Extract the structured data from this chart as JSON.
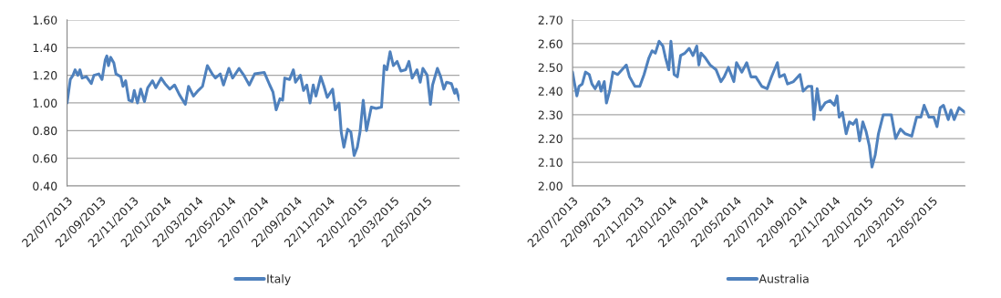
{
  "chart_data": [
    {
      "type": "line",
      "grid": "y",
      "legend": "bottom",
      "marker": "none",
      "line_style": "solid",
      "ylim": [
        0.4,
        1.6
      ],
      "yticks": [
        {
          "value": 0.4,
          "label": "0.40"
        },
        {
          "value": 0.6,
          "label": "0.60"
        },
        {
          "value": 0.8,
          "label": "0.80"
        },
        {
          "value": 1.0,
          "label": "1.00"
        },
        {
          "value": 1.2,
          "label": "1.20"
        },
        {
          "value": 1.4,
          "label": "1.40"
        },
        {
          "value": 1.6,
          "label": "1.60"
        }
      ],
      "xlim": [
        "2013-07-22",
        "2015-07-22"
      ],
      "xticks": [
        {
          "value": "2013-07-22",
          "label": "22/07/2013"
        },
        {
          "value": "2013-09-22",
          "label": "22/09/2013"
        },
        {
          "value": "2013-11-22",
          "label": "22/11/2013"
        },
        {
          "value": "2014-01-22",
          "label": "22/01/2014"
        },
        {
          "value": "2014-03-22",
          "label": "22/03/2014"
        },
        {
          "value": "2014-05-22",
          "label": "22/05/2014"
        },
        {
          "value": "2014-07-22",
          "label": "22/07/2014"
        },
        {
          "value": "2014-09-22",
          "label": "22/09/2014"
        },
        {
          "value": "2014-11-22",
          "label": "22/11/2014"
        },
        {
          "value": "2015-01-22",
          "label": "22/01/2015"
        },
        {
          "value": "2015-03-22",
          "label": "22/03/2015"
        },
        {
          "value": "2015-05-22",
          "label": "22/05/2015"
        }
      ],
      "x": [
        "2013-07-22",
        "2013-07-28",
        "2013-08-02",
        "2013-08-06",
        "2013-08-11",
        "2013-08-15",
        "2013-08-19",
        "2013-08-27",
        "2013-09-05",
        "2013-09-10",
        "2013-09-19",
        "2013-09-25",
        "2013-10-01",
        "2013-10-04",
        "2013-10-07",
        "2013-10-11",
        "2013-10-17",
        "2013-10-21",
        "2013-10-30",
        "2013-11-03",
        "2013-11-08",
        "2013-11-14",
        "2013-11-20",
        "2013-11-24",
        "2013-11-30",
        "2013-12-06",
        "2013-12-13",
        "2013-12-19",
        "2013-12-28",
        "2014-01-03",
        "2014-01-13",
        "2014-01-20",
        "2014-01-29",
        "2014-02-07",
        "2014-02-16",
        "2014-02-27",
        "2014-03-05",
        "2014-03-14",
        "2014-03-23",
        "2014-03-31",
        "2014-04-09",
        "2014-04-18",
        "2014-04-24",
        "2014-05-03",
        "2014-05-09",
        "2014-05-19",
        "2014-05-26",
        "2014-06-07",
        "2014-06-16",
        "2014-06-26",
        "2014-07-06",
        "2014-07-24",
        "2014-08-03",
        "2014-08-09",
        "2014-08-15",
        "2014-08-22",
        "2014-08-27",
        "2014-08-31",
        "2014-09-09",
        "2014-09-16",
        "2014-09-20",
        "2014-09-29",
        "2014-10-05",
        "2014-10-11",
        "2014-10-17",
        "2014-10-23",
        "2014-10-28",
        "2014-11-06",
        "2014-11-12",
        "2014-11-18",
        "2014-11-28",
        "2014-12-03",
        "2014-12-10",
        "2014-12-14",
        "2014-12-19",
        "2014-12-26",
        "2015-01-01",
        "2015-01-07",
        "2015-01-13",
        "2015-01-18",
        "2015-01-24",
        "2015-01-30",
        "2015-02-08",
        "2015-02-17",
        "2015-02-27",
        "2015-03-04",
        "2015-03-09",
        "2015-03-15",
        "2015-03-21",
        "2015-03-28",
        "2015-04-04",
        "2015-04-13",
        "2015-04-19",
        "2015-04-25",
        "2015-05-04",
        "2015-05-10",
        "2015-05-15",
        "2015-05-23",
        "2015-05-29",
        "2015-06-02",
        "2015-06-11",
        "2015-06-17",
        "2015-06-23",
        "2015-06-28",
        "2015-07-07",
        "2015-07-13",
        "2015-07-16",
        "2015-07-22"
      ],
      "series": [
        {
          "name": "Italy",
          "color": "#4f81bd",
          "values": [
            1.0,
            1.17,
            1.2,
            1.24,
            1.2,
            1.24,
            1.18,
            1.19,
            1.14,
            1.2,
            1.21,
            1.17,
            1.31,
            1.34,
            1.27,
            1.33,
            1.29,
            1.21,
            1.19,
            1.12,
            1.16,
            1.02,
            1.01,
            1.09,
            1.0,
            1.1,
            1.01,
            1.11,
            1.16,
            1.11,
            1.18,
            1.14,
            1.1,
            1.13,
            1.06,
            0.99,
            1.12,
            1.05,
            1.09,
            1.12,
            1.27,
            1.21,
            1.18,
            1.21,
            1.13,
            1.25,
            1.18,
            1.25,
            1.2,
            1.13,
            1.21,
            1.22,
            1.13,
            1.08,
            0.95,
            1.03,
            1.02,
            1.18,
            1.17,
            1.24,
            1.15,
            1.2,
            1.09,
            1.13,
            1.0,
            1.13,
            1.05,
            1.19,
            1.12,
            1.04,
            1.1,
            0.95,
            1.0,
            0.79,
            0.68,
            0.81,
            0.79,
            0.62,
            0.68,
            0.79,
            1.02,
            0.8,
            0.97,
            0.96,
            0.97,
            1.27,
            1.24,
            1.37,
            1.27,
            1.3,
            1.23,
            1.24,
            1.3,
            1.18,
            1.24,
            1.15,
            1.25,
            1.2,
            0.99,
            1.13,
            1.25,
            1.19,
            1.1,
            1.15,
            1.14,
            1.07,
            1.1,
            1.02
          ]
        }
      ]
    },
    {
      "type": "line",
      "grid": "y",
      "legend": "bottom",
      "marker": "none",
      "line_style": "solid",
      "ylim": [
        2.0,
        2.7
      ],
      "yticks": [
        {
          "value": 2.0,
          "label": "2.00"
        },
        {
          "value": 2.1,
          "label": "2.10"
        },
        {
          "value": 2.2,
          "label": "2.20"
        },
        {
          "value": 2.3,
          "label": "2.30"
        },
        {
          "value": 2.4,
          "label": "2.40"
        },
        {
          "value": 2.5,
          "label": "2.50"
        },
        {
          "value": 2.6,
          "label": "2.60"
        },
        {
          "value": 2.7,
          "label": "2.70"
        }
      ],
      "xlim": [
        "2013-07-22",
        "2015-07-22"
      ],
      "xticks": [
        {
          "value": "2013-07-22",
          "label": "22/07/2013"
        },
        {
          "value": "2013-09-22",
          "label": "22/09/2013"
        },
        {
          "value": "2013-11-22",
          "label": "22/11/2013"
        },
        {
          "value": "2014-01-22",
          "label": "22/01/2014"
        },
        {
          "value": "2014-03-22",
          "label": "22/03/2014"
        },
        {
          "value": "2014-05-22",
          "label": "22/05/2014"
        },
        {
          "value": "2014-07-22",
          "label": "22/07/2014"
        },
        {
          "value": "2014-09-22",
          "label": "22/09/2014"
        },
        {
          "value": "2014-11-22",
          "label": "22/11/2014"
        },
        {
          "value": "2015-01-22",
          "label": "22/01/2015"
        },
        {
          "value": "2015-03-22",
          "label": "22/03/2015"
        },
        {
          "value": "2015-05-22",
          "label": "22/05/2015"
        }
      ],
      "x": [
        "2013-07-22",
        "2013-07-25",
        "2013-07-30",
        "2013-08-03",
        "2013-08-09",
        "2013-08-15",
        "2013-08-22",
        "2013-08-27",
        "2013-09-02",
        "2013-09-09",
        "2013-09-13",
        "2013-09-19",
        "2013-09-23",
        "2013-09-29",
        "2013-10-05",
        "2013-10-14",
        "2013-10-22",
        "2013-10-30",
        "2013-11-05",
        "2013-11-15",
        "2013-11-24",
        "2013-12-02",
        "2013-12-11",
        "2013-12-17",
        "2013-12-23",
        "2013-12-30",
        "2014-01-06",
        "2014-01-11",
        "2014-01-17",
        "2014-01-21",
        "2014-01-27",
        "2014-02-02",
        "2014-02-08",
        "2014-02-16",
        "2014-02-24",
        "2014-03-03",
        "2014-03-10",
        "2014-03-14",
        "2014-03-18",
        "2014-03-26",
        "2014-04-04",
        "2014-04-15",
        "2014-04-24",
        "2014-04-30",
        "2014-05-08",
        "2014-05-18",
        "2014-05-23",
        "2014-06-02",
        "2014-06-11",
        "2014-06-19",
        "2014-06-28",
        "2014-07-09",
        "2014-07-19",
        "2014-07-27",
        "2014-08-07",
        "2014-08-11",
        "2014-08-20",
        "2014-08-26",
        "2014-09-06",
        "2014-09-18",
        "2014-09-24",
        "2014-10-03",
        "2014-10-10",
        "2014-10-14",
        "2014-10-20",
        "2014-10-26",
        "2014-11-04",
        "2014-11-13",
        "2014-11-21",
        "2014-11-26",
        "2014-11-30",
        "2014-12-06",
        "2014-12-13",
        "2014-12-19",
        "2014-12-26",
        "2015-01-01",
        "2015-01-07",
        "2015-01-13",
        "2015-01-19",
        "2015-01-25",
        "2015-01-30",
        "2015-02-05",
        "2015-02-11",
        "2015-02-20",
        "2015-03-01",
        "2015-03-07",
        "2015-03-15",
        "2015-03-24",
        "2015-04-02",
        "2015-04-14",
        "2015-04-23",
        "2015-05-01",
        "2015-05-07",
        "2015-05-16",
        "2015-05-25",
        "2015-05-31",
        "2015-06-06",
        "2015-06-12",
        "2015-06-21",
        "2015-06-26",
        "2015-07-02",
        "2015-07-11",
        "2015-07-22"
      ],
      "series": [
        {
          "name": "Australia",
          "color": "#4f81bd",
          "values": [
            2.48,
            2.44,
            2.38,
            2.42,
            2.43,
            2.48,
            2.47,
            2.43,
            2.41,
            2.44,
            2.4,
            2.44,
            2.35,
            2.4,
            2.48,
            2.47,
            2.49,
            2.51,
            2.46,
            2.42,
            2.42,
            2.47,
            2.54,
            2.57,
            2.56,
            2.61,
            2.59,
            2.54,
            2.49,
            2.61,
            2.47,
            2.46,
            2.55,
            2.56,
            2.58,
            2.55,
            2.59,
            2.51,
            2.56,
            2.54,
            2.51,
            2.49,
            2.44,
            2.46,
            2.5,
            2.44,
            2.52,
            2.48,
            2.52,
            2.46,
            2.46,
            2.42,
            2.41,
            2.46,
            2.52,
            2.46,
            2.47,
            2.43,
            2.44,
            2.47,
            2.4,
            2.42,
            2.42,
            2.28,
            2.41,
            2.32,
            2.35,
            2.36,
            2.34,
            2.38,
            2.29,
            2.31,
            2.22,
            2.27,
            2.26,
            2.28,
            2.19,
            2.27,
            2.23,
            2.17,
            2.08,
            2.13,
            2.22,
            2.3,
            2.3,
            2.3,
            2.2,
            2.24,
            2.22,
            2.21,
            2.29,
            2.29,
            2.34,
            2.29,
            2.29,
            2.25,
            2.33,
            2.34,
            2.28,
            2.32,
            2.28,
            2.33,
            2.31
          ]
        }
      ]
    }
  ]
}
